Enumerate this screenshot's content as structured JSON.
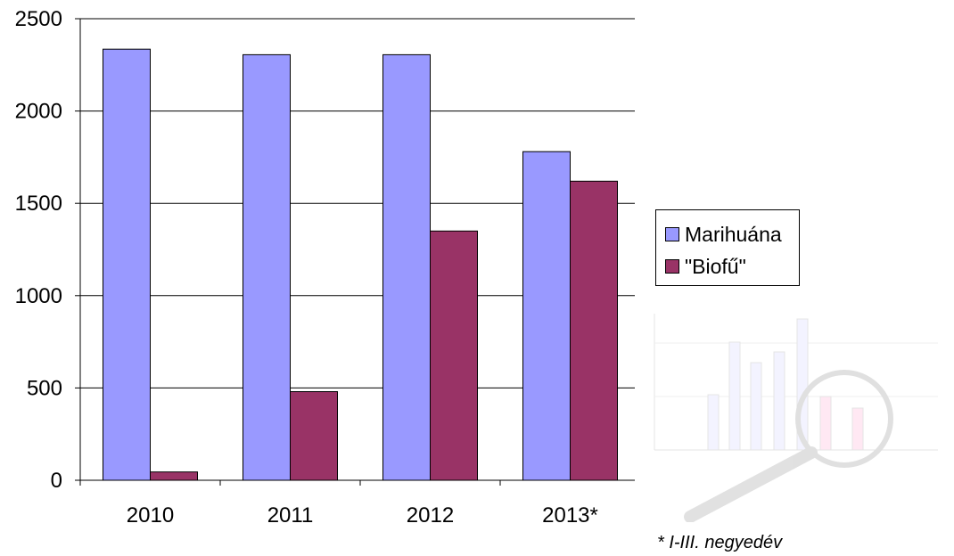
{
  "chart_data": {
    "type": "bar",
    "categories": [
      "2010",
      "2011",
      "2012",
      "2013*"
    ],
    "series": [
      {
        "name": "Marihuána",
        "values": [
          2335,
          2305,
          2305,
          1780
        ],
        "color": "#9999ff"
      },
      {
        "name": "\"Biofű\"",
        "values": [
          45,
          480,
          1350,
          1620
        ],
        "color": "#993366"
      }
    ],
    "y_ticks": [
      "0",
      "500",
      "1000",
      "1500",
      "2000",
      "2500"
    ],
    "ylim": [
      0,
      2500
    ],
    "grid": true,
    "legend_position": "right",
    "footnote": "* I-III. negyedév"
  }
}
